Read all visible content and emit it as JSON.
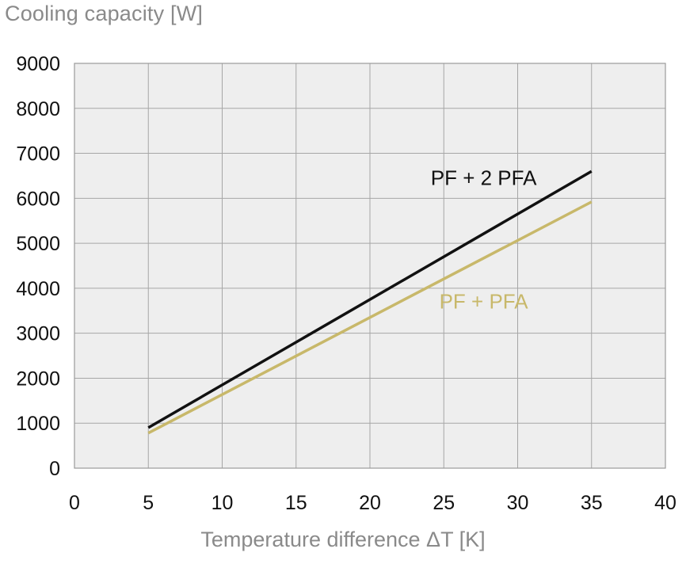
{
  "chart_data": {
    "type": "line",
    "title": "",
    "ylabel": "Cooling capacity [W]",
    "xlabel": "Temperature difference ΔT [K]",
    "xlim": [
      0,
      40
    ],
    "ylim": [
      0,
      9000
    ],
    "xticks": [
      "0",
      "5",
      "10",
      "15",
      "20",
      "25",
      "30",
      "35",
      "40"
    ],
    "yticks": [
      "0",
      "1000",
      "2000",
      "3000",
      "4000",
      "5000",
      "6000",
      "7000",
      "8000",
      "9000"
    ],
    "grid": true,
    "series": [
      {
        "name": "PF + 2 PFA",
        "color": "#111111",
        "x": [
          5,
          35
        ],
        "y": [
          900,
          6600
        ],
        "label_at": [
          27.7,
          6300
        ]
      },
      {
        "name": "PF + PFA",
        "color": "#c8b86a",
        "x": [
          5,
          35
        ],
        "y": [
          780,
          5920
        ],
        "label_at": [
          27.7,
          3550
        ]
      }
    ]
  }
}
